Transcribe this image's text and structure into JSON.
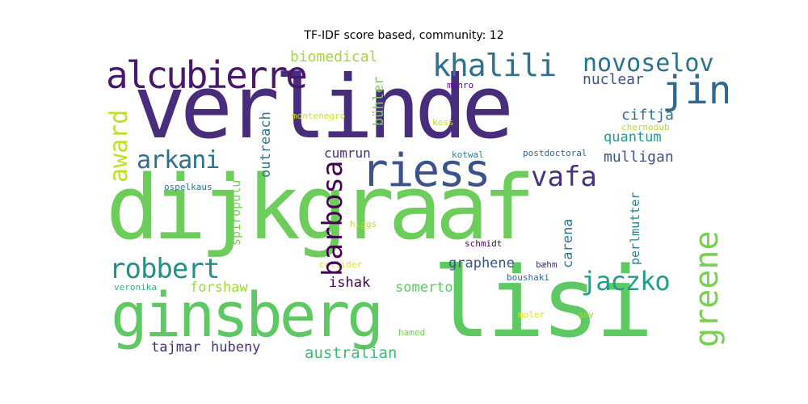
{
  "title": "TF-IDF score based, community: 12",
  "words": [
    {
      "text": "verlinde",
      "color": "#472d7b"
    },
    {
      "text": "dijkgraaf",
      "color": "#6ccd5a"
    },
    {
      "text": "ginsberg",
      "color": "#5ec962"
    },
    {
      "text": "lisi",
      "color": "#5ec962"
    },
    {
      "text": "riess",
      "color": "#3b528b"
    },
    {
      "text": "alcubierre",
      "color": "#48186a"
    },
    {
      "text": "khalili",
      "color": "#2c728e"
    },
    {
      "text": "novoselov",
      "color": "#2c728e"
    },
    {
      "text": "jin",
      "color": "#31688e"
    },
    {
      "text": "vafa",
      "color": "#46327e"
    },
    {
      "text": "barbosa",
      "color": "#440154"
    },
    {
      "text": "robbert",
      "color": "#21918c"
    },
    {
      "text": "jaczko",
      "color": "#1f9e89"
    },
    {
      "text": "greene",
      "color": "#7ad151"
    },
    {
      "text": "award",
      "color": "#c2df23"
    },
    {
      "text": "arkani",
      "color": "#2c728e"
    },
    {
      "text": "biomedical",
      "color": "#a0da39"
    },
    {
      "text": "nuclear",
      "color": "#3b528b"
    },
    {
      "text": "ciftja",
      "color": "#2c728e"
    },
    {
      "text": "quantum",
      "color": "#1f9e89"
    },
    {
      "text": "mulligan",
      "color": "#3b528b"
    },
    {
      "text": "cumrun",
      "color": "#472d7b"
    },
    {
      "text": "outreach",
      "color": "#2a788e"
    },
    {
      "text": "bühler",
      "color": "#7ad151"
    },
    {
      "text": "montenegro",
      "color": "#d0e11c"
    },
    {
      "text": "monro",
      "color": "#6a00a8"
    },
    {
      "text": "koss",
      "color": "#bddf26"
    },
    {
      "text": "chernodub",
      "color": "#b5de2b"
    },
    {
      "text": "postdoctoral",
      "color": "#31688e"
    },
    {
      "text": "kotwal",
      "color": "#26828e"
    },
    {
      "text": "ospelkaus",
      "color": "#2c728e"
    },
    {
      "text": "spiropulu",
      "color": "#7ad151"
    },
    {
      "text": "higgs",
      "color": "#bddf26"
    },
    {
      "text": "carena",
      "color": "#2a788e"
    },
    {
      "text": "perlmutter",
      "color": "#26828e"
    },
    {
      "text": "schmidt",
      "color": "#440154"
    },
    {
      "text": "graphene",
      "color": "#3b528b"
    },
    {
      "text": "bæhm",
      "color": "#46327e"
    },
    {
      "text": "collider",
      "color": "#e2e418"
    },
    {
      "text": "boushaki",
      "color": "#31688e"
    },
    {
      "text": "veronika",
      "color": "#35b779"
    },
    {
      "text": "forshaw",
      "color": "#a0da39"
    },
    {
      "text": "ishak",
      "color": "#440154"
    },
    {
      "text": "somerton",
      "color": "#5ec962"
    },
    {
      "text": "moler",
      "color": "#e2e418"
    },
    {
      "text": "gay",
      "color": "#a0da39"
    },
    {
      "text": "hamed",
      "color": "#7ad151"
    },
    {
      "text": "tajmar",
      "color": "#472d7b"
    },
    {
      "text": "hubeny",
      "color": "#46327e"
    },
    {
      "text": "australian",
      "color": "#3fbc73"
    }
  ]
}
